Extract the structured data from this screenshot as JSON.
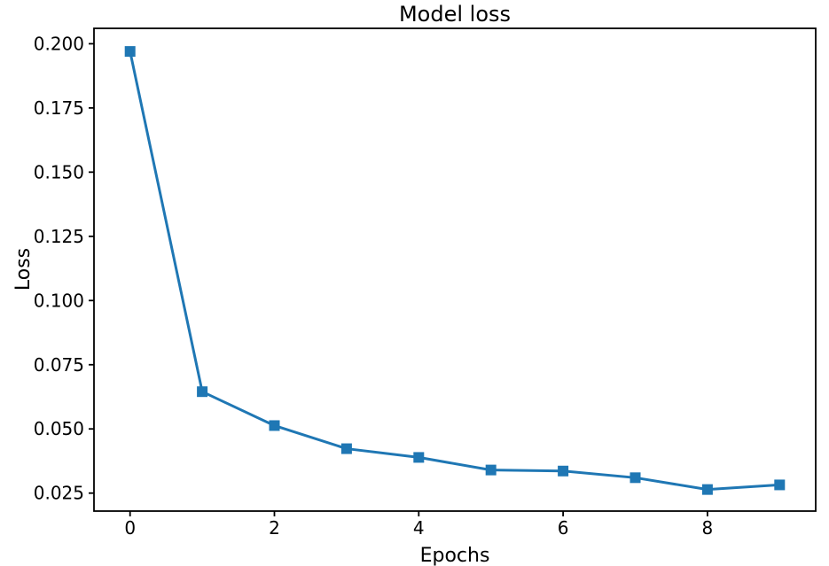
{
  "chart_data": {
    "type": "line",
    "title": "Model loss",
    "xlabel": "Epochs",
    "ylabel": "Loss",
    "x": [
      0,
      1,
      2,
      3,
      4,
      5,
      6,
      7,
      8,
      9
    ],
    "series": [
      {
        "name": "loss",
        "values": [
          0.197,
          0.0645,
          0.0513,
          0.0423,
          0.0389,
          0.034,
          0.0336,
          0.031,
          0.0264,
          0.0282
        ]
      }
    ],
    "xlim": [
      -0.5,
      9.5
    ],
    "ylim": [
      0.018,
      0.206
    ],
    "xticks": [
      0,
      2,
      4,
      6,
      8
    ],
    "xtick_labels": [
      "0",
      "2",
      "4",
      "6",
      "8"
    ],
    "yticks": [
      0.025,
      0.05,
      0.075,
      0.1,
      0.125,
      0.15,
      0.175,
      0.2
    ],
    "ytick_labels": [
      "0.025",
      "0.050",
      "0.075",
      "0.100",
      "0.125",
      "0.150",
      "0.175",
      "0.200"
    ],
    "grid": false,
    "legend_position": "none",
    "line_color": "#1f77b4",
    "marker": "square",
    "marker_color": "#1f77b4",
    "spine_color": "#000000",
    "background_color": "#ffffff"
  }
}
